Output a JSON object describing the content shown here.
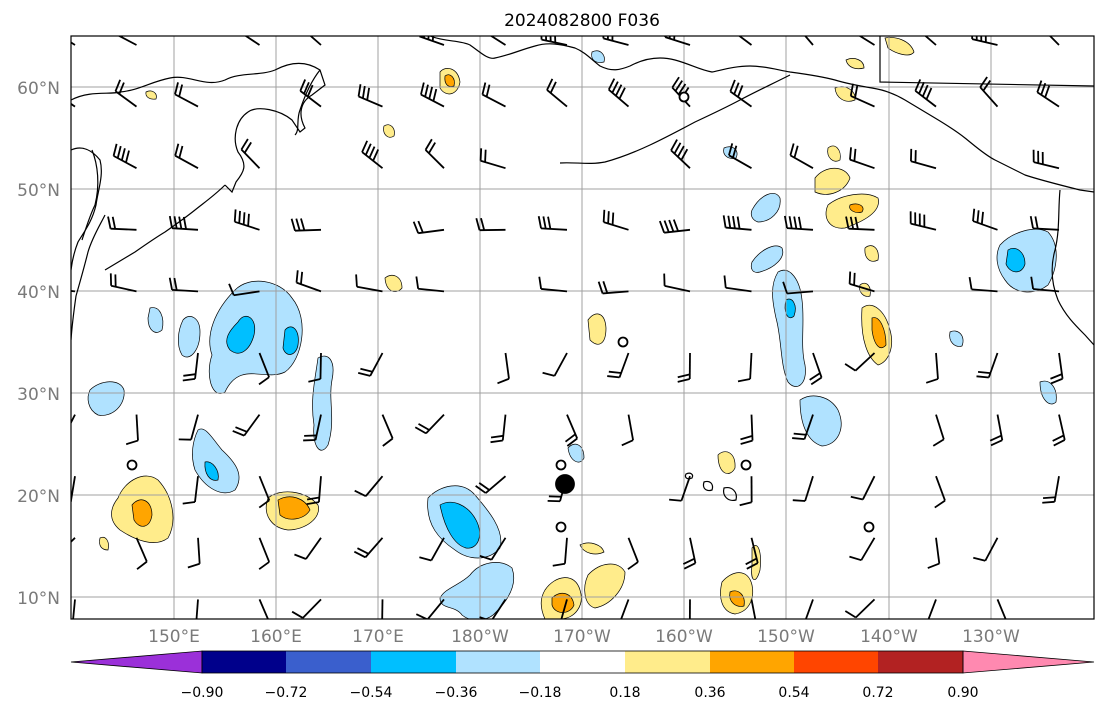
{
  "title": "2024082800 F036",
  "map": {
    "lat_ticks": [
      "60°N",
      "50°N",
      "40°N",
      "30°N",
      "20°N",
      "10°N"
    ],
    "lon_ticks": [
      "150°E",
      "160°E",
      "170°E",
      "180°W",
      "170°W",
      "160°W",
      "150°W",
      "140°W",
      "130°W"
    ]
  },
  "colorbar": {
    "labels": [
      "−0.90",
      "−0.72",
      "−0.54",
      "−0.36",
      "−0.18",
      "0.18",
      "0.36",
      "0.54",
      "0.72",
      "0.90"
    ],
    "colors": [
      "#9b30d9",
      "#00008b",
      "#3a5fcd",
      "#00bfff",
      "#b0e2ff",
      "#ffffff",
      "#ffec8b",
      "#ffa500",
      "#ff4500",
      "#b22222",
      "#ff89b0"
    ]
  },
  "colors": {
    "grid": "#a0a0a0",
    "coast": "#000000",
    "axis_label": "#7a7a7a"
  }
}
